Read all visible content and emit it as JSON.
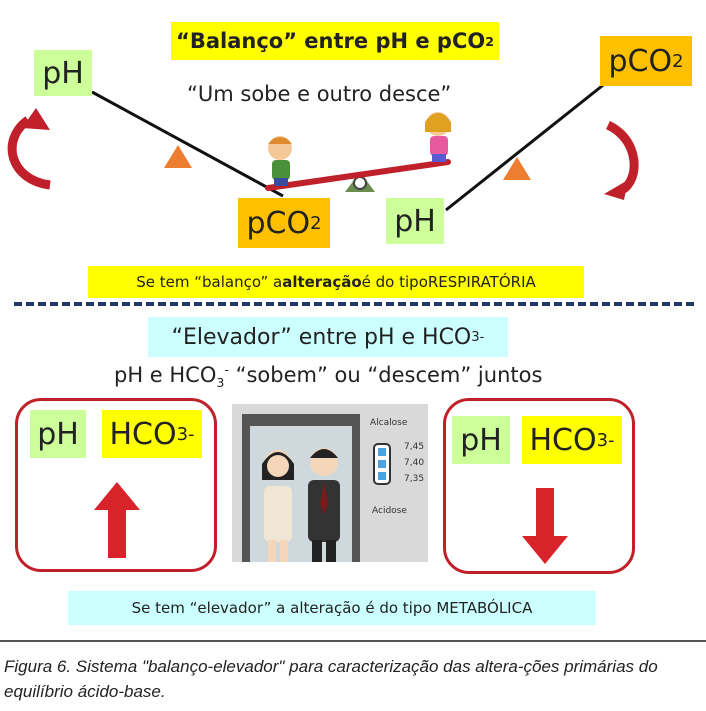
{
  "balance": {
    "title": "“Balanço” entre pH e pCO",
    "title_sub": "2",
    "subtitle": "“Um sobe e outro desce”",
    "left_top": {
      "label": "pH"
    },
    "left_bottom": {
      "label": "pCO",
      "sub": "2"
    },
    "right_top": {
      "label": "pCO",
      "sub": "2"
    },
    "right_bottom": {
      "label": "pH"
    },
    "note_prefix": "Se tem “balanço” a ",
    "note_bold": "alteração",
    "note_mid": " é do tipo ",
    "note_type": "RESPIRATÓRIA"
  },
  "elevator": {
    "title": "“Elevador” entre pH e HCO",
    "title_sub": "3",
    "title_sup": "-",
    "subtitle_a": "pH e HCO",
    "subtitle_sub": "3",
    "subtitle_sup": "-",
    "subtitle_b": " “sobem” ou “descem” juntos",
    "left_panel": {
      "ph": "pH",
      "hco": "HCO",
      "hco_sub": "3",
      "hco_sup": "-"
    },
    "right_panel": {
      "ph": "pH",
      "hco": "HCO",
      "hco_sub": "3",
      "hco_sup": "-"
    },
    "scale_top": "Alcalose",
    "scale_values": [
      "7,45",
      "7,40",
      "7,35"
    ],
    "scale_bottom": "Acidose",
    "note": "Se tem “elevador” a alteração é do tipo METABÓLICA"
  },
  "caption": "Figura 6. Sistema \"balanço-elevador\" para caracterização das altera-ções primárias do equilíbrio ácido-base.",
  "colors": {
    "red": "#d9232a",
    "navy": "#1f3864",
    "yellow": "#ffff00",
    "green": "#ccff99",
    "orange": "#ffc000",
    "cyan": "#ccffff"
  }
}
